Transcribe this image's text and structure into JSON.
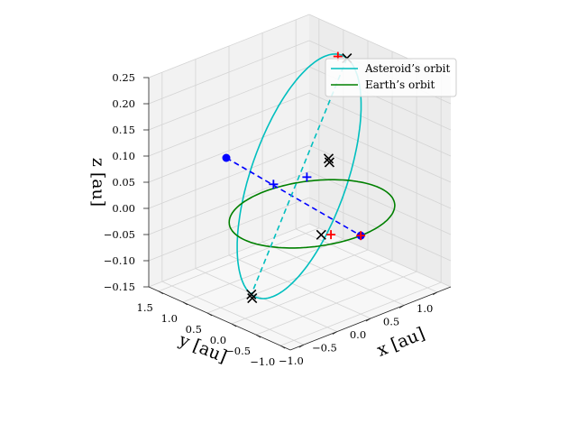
{
  "chart_data": {
    "type": "line",
    "projection": "3d",
    "grid": true,
    "legend_position": "top-right",
    "xlabel": "x [au]",
    "ylabel": "y [au]",
    "zlabel": "z [au]",
    "xlim": [
      -1.2,
      1.2
    ],
    "ylim": [
      -1.2,
      1.7
    ],
    "zlim": [
      -0.15,
      0.25
    ],
    "x_ticks": [
      "−1.0",
      "−0.5",
      "0.0",
      "0.5",
      "1.0"
    ],
    "y_ticks": [
      "−1.0",
      "−0.5",
      "0.0",
      "0.5",
      "1.0",
      "1.5"
    ],
    "z_ticks": [
      "−0.15",
      "−0.10",
      "−0.05",
      "0.00",
      "0.05",
      "0.10",
      "0.15",
      "0.20",
      "0.25"
    ],
    "x_tick_values": [
      -1.0,
      -0.5,
      0.0,
      0.5,
      1.0
    ],
    "y_tick_values": [
      -1.0,
      -0.5,
      0.0,
      0.5,
      1.0,
      1.5
    ],
    "z_tick_values": [
      -0.15,
      -0.1,
      -0.05,
      0.0,
      0.05,
      0.1,
      0.15,
      0.2,
      0.25
    ],
    "series": [
      {
        "name": "Asteroid’s orbit",
        "color": "#00bfbf",
        "style": "solid",
        "kind": "ellipse",
        "center": [
          0.1,
          0.4,
          0.05
        ],
        "u": [
          -0.25,
          -1.15,
          0.0
        ],
        "v": [
          0.62,
          -0.13,
          0.2
        ]
      },
      {
        "name": "Earth’s orbit",
        "color": "#008000",
        "style": "solid",
        "kind": "circle",
        "center": [
          0.0,
          0.0,
          0.0
        ],
        "radius": 1.0
      }
    ],
    "lines": [
      {
        "color": "#0000ff",
        "style": "dashed",
        "from": [
          -0.15,
          1.55,
          0.05
        ],
        "to": [
          0.0,
          -1.0,
          0.0
        ]
      },
      {
        "color": "#00bfbf",
        "style": "dashed",
        "from": [
          0.72,
          0.27,
          0.25
        ],
        "to": [
          -0.52,
          0.53,
          -0.15
        ]
      }
    ],
    "markers": [
      {
        "type": "dot",
        "color": "#0000ff",
        "points": [
          [
            -0.15,
            1.55,
            0.05
          ],
          [
            0.0,
            -1.0,
            0.0
          ]
        ]
      },
      {
        "type": "cross",
        "color": "#000000",
        "points": [
          [
            0.72,
            0.27,
            0.25
          ],
          [
            0.65,
            0.55,
            0.05
          ],
          [
            0.59,
            0.45,
            0.05
          ],
          [
            -0.52,
            0.53,
            -0.15
          ],
          [
            -0.58,
            0.43,
            -0.15
          ],
          [
            -0.3,
            -0.6,
            0.0
          ]
        ]
      },
      {
        "type": "plus",
        "color": "#ff0000",
        "points": [
          [
            0.68,
            0.4,
            0.25
          ],
          [
            -0.22,
            -0.69,
            0.0
          ],
          [
            0.0,
            -1.0,
            0.0
          ]
        ]
      },
      {
        "type": "plus",
        "color": "#0000ff",
        "points": [
          [
            0.22,
            1.09,
            0.0
          ],
          [
            0.8,
            1.2,
            -0.02
          ]
        ]
      }
    ]
  }
}
